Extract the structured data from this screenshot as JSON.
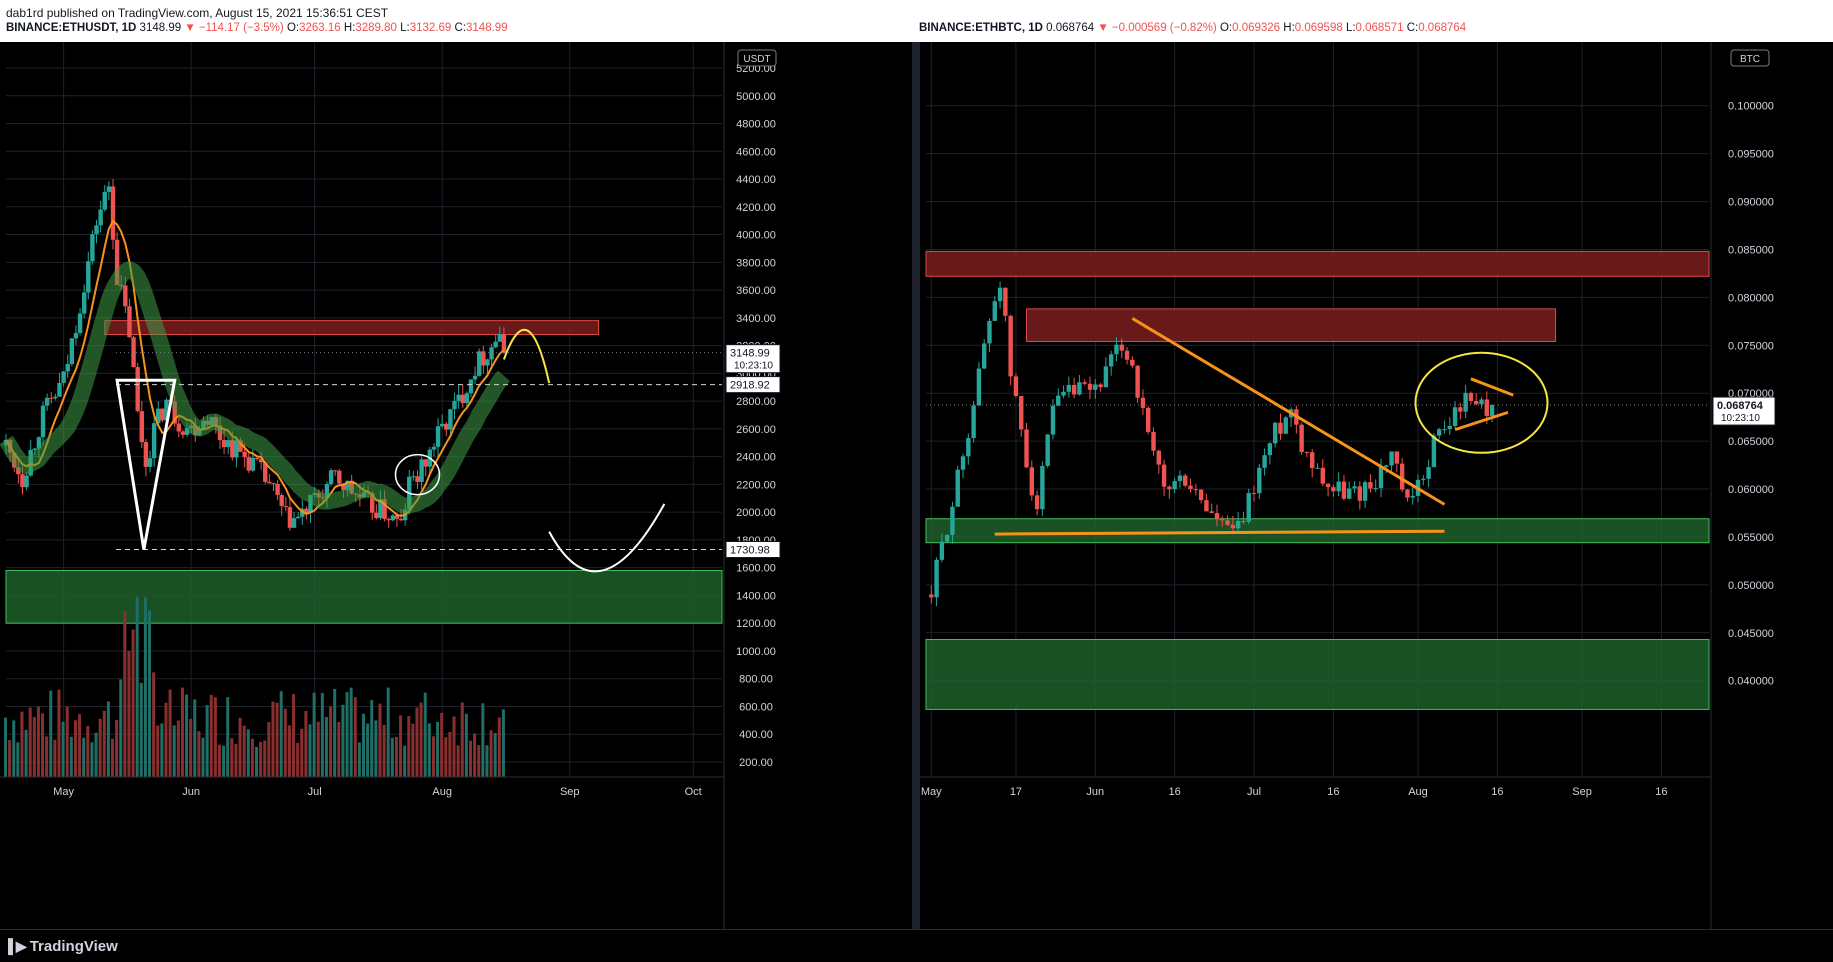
{
  "header": {
    "published": "dab1rd published on TradingView.com, August 15, 2021 15:36:51 CEST"
  },
  "left_legend": {
    "symbol": "BINANCE:ETHUSDT, 1D",
    "last": "3148.99",
    "change": "▼ −114.17 (−3.5%)",
    "o_label": "O:",
    "o": "3263.16",
    "h_label": "H:",
    "h": "3289.80",
    "l_label": "L:",
    "l": "3132.69",
    "c_label": "C:",
    "c": "3148.99"
  },
  "right_legend": {
    "symbol": "BINANCE:ETHBTC, 1D",
    "last": "0.068764",
    "change": "▼ −0.000569 (−0.82%)",
    "o_label": "O:",
    "o": "0.069326",
    "h_label": "H:",
    "h": "0.069598",
    "l_label": "L:",
    "l": "0.068571",
    "c_label": "C:",
    "c": "0.068764"
  },
  "footer": {
    "brand": "TradingView",
    "logo": "tradingview-logo-icon"
  },
  "chart_data": [
    {
      "type": "candlestick",
      "symbol": "BINANCE:ETHUSDT",
      "timeframe": "1D",
      "currency_label": "USDT",
      "y_ticks": [
        "5200.00",
        "5000.00",
        "4800.00",
        "4600.00",
        "4400.00",
        "4200.00",
        "4000.00",
        "3800.00",
        "3600.00",
        "3400.00",
        "3200.00",
        "3000.00",
        "2800.00",
        "2600.00",
        "2400.00",
        "2200.00",
        "2000.00",
        "1800.00",
        "1600.00",
        "1400.00",
        "1200.00",
        "1000.00",
        "800.00",
        "600.00",
        "400.00",
        "200.00"
      ],
      "y_tick_values": [
        5200,
        5000,
        4800,
        4600,
        4400,
        4200,
        4000,
        3800,
        3600,
        3400,
        3200,
        3000,
        2800,
        2600,
        2400,
        2200,
        2000,
        1800,
        1600,
        1400,
        1200,
        1000,
        800,
        600,
        400,
        200
      ],
      "ylim": [
        200,
        5200
      ],
      "x_ticks": [
        "May",
        "Jun",
        "Jul",
        "Aug",
        "Sep",
        "Oct"
      ],
      "x_tick_days": [
        0,
        31,
        61,
        92,
        123,
        153
      ],
      "xlim_days": [
        -14,
        160
      ],
      "price_labels": [
        {
          "value": 3148.99,
          "text": "3148.99",
          "sub": "10:23:10"
        },
        {
          "value": 2918.92,
          "text": "2918.92"
        },
        {
          "value": 1730.98,
          "text": "1730.98"
        }
      ],
      "candles_anchor_close": [
        [
          -14,
          2480
        ],
        [
          -10,
          2250
        ],
        [
          -5,
          2700
        ],
        [
          0,
          2950
        ],
        [
          4,
          3500
        ],
        [
          8,
          4100
        ],
        [
          11,
          4350
        ],
        [
          13,
          3700
        ],
        [
          16,
          3300
        ],
        [
          18,
          2700
        ],
        [
          20,
          2350
        ],
        [
          22,
          2600
        ],
        [
          25,
          2800
        ],
        [
          28,
          2650
        ],
        [
          31,
          2600
        ],
        [
          35,
          2700
        ],
        [
          38,
          2550
        ],
        [
          42,
          2450
        ],
        [
          46,
          2350
        ],
        [
          50,
          2200
        ],
        [
          54,
          1950
        ],
        [
          57,
          1950
        ],
        [
          60,
          2050
        ],
        [
          63,
          2150
        ],
        [
          66,
          2250
        ],
        [
          70,
          2150
        ],
        [
          74,
          2050
        ],
        [
          78,
          2000
        ],
        [
          82,
          1900
        ],
        [
          84,
          2200
        ],
        [
          87,
          2300
        ],
        [
          90,
          2500
        ],
        [
          93,
          2650
        ],
        [
          96,
          2800
        ],
        [
          100,
          3050
        ],
        [
          104,
          3200
        ],
        [
          106,
          3300
        ],
        [
          107,
          3148.99
        ]
      ],
      "zones": [
        {
          "kind": "resistance",
          "low": 3280,
          "high": 3380,
          "from_day": 10,
          "to_day": 130
        },
        {
          "kind": "support",
          "low": 1200,
          "high": 1580,
          "from_day": -14,
          "to_day": 160
        }
      ]
    },
    {
      "type": "candlestick",
      "symbol": "BINANCE:ETHBTC",
      "timeframe": "1D",
      "currency_label": "BTC",
      "y_ticks": [
        "0.100000",
        "0.095000",
        "0.090000",
        "0.085000",
        "0.080000",
        "0.075000",
        "0.070000",
        "0.065000",
        "0.060000",
        "0.055000",
        "0.050000",
        "0.045000",
        "0.040000"
      ],
      "y_tick_values": [
        0.1,
        0.095,
        0.09,
        0.085,
        0.08,
        0.075,
        0.07,
        0.065,
        0.06,
        0.055,
        0.05,
        0.045,
        0.04
      ],
      "ylim": [
        0.036,
        0.103
      ],
      "x_ticks": [
        "May",
        "17",
        "Jun",
        "16",
        "Jul",
        "16",
        "Aug",
        "16",
        "Sep",
        "16"
      ],
      "x_tick_days": [
        0,
        16,
        31,
        46,
        61,
        76,
        92,
        107,
        123,
        138
      ],
      "xlim_days": [
        -1,
        147
      ],
      "price_labels": [
        {
          "value": 0.068764,
          "text": "0.068764",
          "sub": "10:23:10"
        }
      ],
      "candles_anchor_close": [
        [
          0,
          0.049
        ],
        [
          2,
          0.054
        ],
        [
          5,
          0.061
        ],
        [
          8,
          0.069
        ],
        [
          11,
          0.078
        ],
        [
          13,
          0.082
        ],
        [
          15,
          0.072
        ],
        [
          18,
          0.063
        ],
        [
          20,
          0.058
        ],
        [
          23,
          0.068
        ],
        [
          26,
          0.07
        ],
        [
          30,
          0.07
        ],
        [
          33,
          0.072
        ],
        [
          36,
          0.075
        ],
        [
          38,
          0.073
        ],
        [
          41,
          0.065
        ],
        [
          44,
          0.06
        ],
        [
          48,
          0.061
        ],
        [
          52,
          0.058
        ],
        [
          55,
          0.056
        ],
        [
          58,
          0.0555
        ],
        [
          62,
          0.062
        ],
        [
          65,
          0.066
        ],
        [
          68,
          0.0685
        ],
        [
          70,
          0.065
        ],
        [
          73,
          0.062
        ],
        [
          76,
          0.06
        ],
        [
          80,
          0.0595
        ],
        [
          84,
          0.061
        ],
        [
          87,
          0.0635
        ],
        [
          90,
          0.058
        ],
        [
          92,
          0.06
        ],
        [
          95,
          0.065
        ],
        [
          98,
          0.067
        ],
        [
          100,
          0.069
        ],
        [
          103,
          0.0695
        ],
        [
          105,
          0.0685
        ],
        [
          106,
          0.068764
        ]
      ],
      "zones": [
        {
          "kind": "resistance",
          "low": 0.0822,
          "high": 0.0848,
          "from_day": -1,
          "to_day": 147
        },
        {
          "kind": "resistance",
          "low": 0.0754,
          "high": 0.0788,
          "from_day": 18,
          "to_day": 118
        },
        {
          "kind": "support",
          "low": 0.0544,
          "high": 0.0569,
          "from_day": -1,
          "to_day": 147
        },
        {
          "kind": "support",
          "low": 0.037,
          "high": 0.0443,
          "from_day": -1,
          "to_day": 147
        }
      ]
    }
  ],
  "colors": {
    "up": "#26a69a",
    "down": "#ef5350",
    "grid": "#1e222d",
    "axis_text": "#d1d4dc",
    "resistance_fill": "#7a1d1d",
    "support_fill": "#1f5f2a",
    "orange_line": "#f7931a",
    "yellow_drawing": "#f5e642",
    "white_drawing": "#ffffff"
  }
}
